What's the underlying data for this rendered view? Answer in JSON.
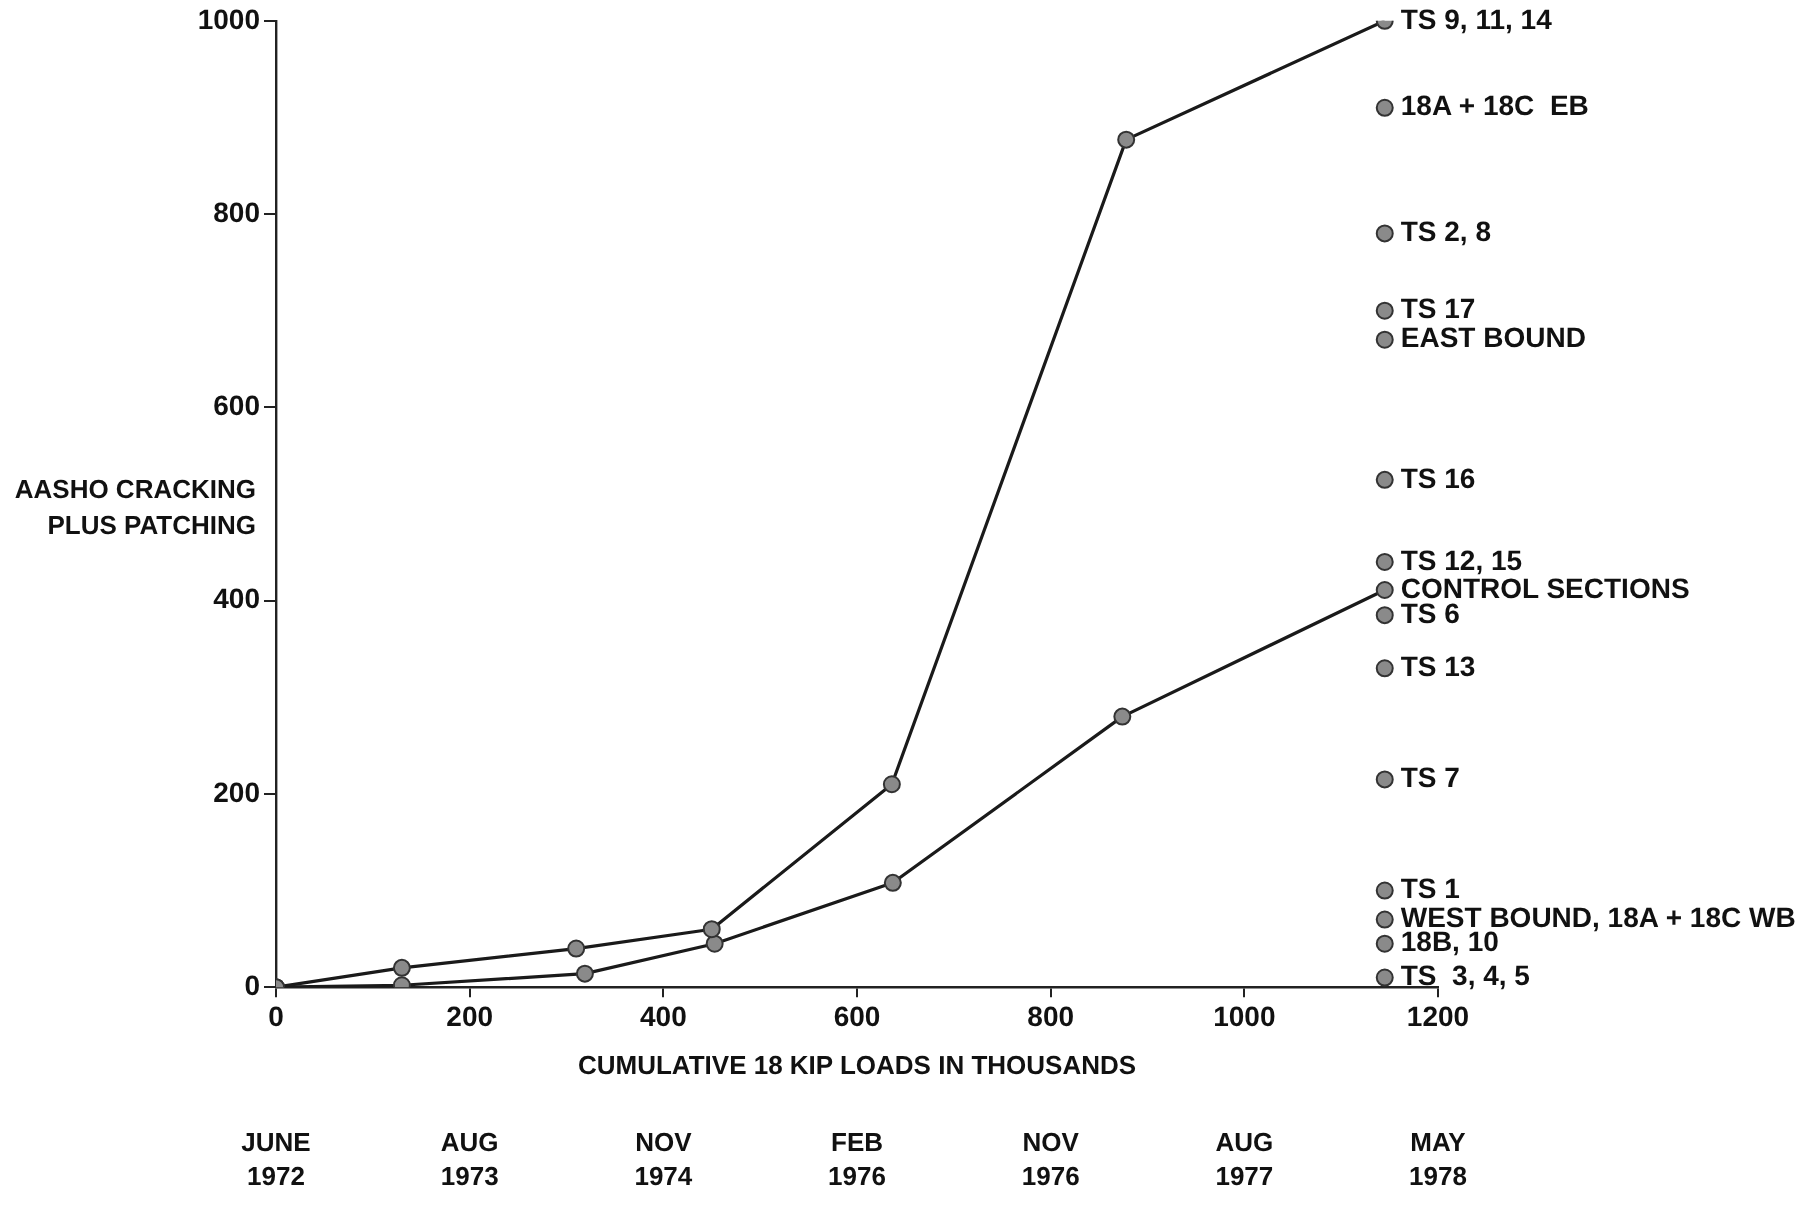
{
  "chart_data": {
    "type": "line",
    "xlabel": "CUMULATIVE 18 KIP LOADS IN THOUSANDS",
    "ylabel": "AASHO CRACKING PLUS PATCHING",
    "xlim": [
      0,
      1200
    ],
    "xticks": [
      0,
      200,
      400,
      600,
      800,
      1000,
      1200
    ],
    "ylim": [
      0,
      1000
    ],
    "yticks": [
      0,
      200,
      400,
      600,
      800,
      1000
    ],
    "grid": false,
    "legend": false,
    "marker": "circle",
    "line_style": "solid",
    "series": [
      {
        "name": "TS 9, 11, 14",
        "color": "#1a1a1a",
        "x": [
          0,
          130,
          310,
          450,
          636,
          878,
          1145
        ],
        "values": [
          0,
          20,
          40,
          60,
          210,
          877,
          1000
        ]
      },
      {
        "name": "CONTROL SECTIONS",
        "color": "#1a1a1a",
        "x": [
          0,
          130,
          319,
          453,
          637,
          874,
          1145
        ],
        "values": [
          0,
          2,
          14,
          45,
          108,
          280,
          411
        ]
      },
      {
        "type": "scatter",
        "name": "18A + 18C  EB",
        "color": "#8a8a8a",
        "x": [
          1145
        ],
        "values": [
          910
        ]
      },
      {
        "type": "scatter",
        "name": "TS 2, 8",
        "color": "#8a8a8a",
        "x": [
          1145
        ],
        "values": [
          780
        ]
      },
      {
        "type": "scatter",
        "name": "TS 17",
        "color": "#8a8a8a",
        "x": [
          1145
        ],
        "values": [
          700
        ]
      },
      {
        "type": "scatter",
        "name": "EAST BOUND",
        "color": "#8a8a8a",
        "x": [
          1145
        ],
        "values": [
          670
        ]
      },
      {
        "type": "scatter",
        "name": "TS 16",
        "color": "#8a8a8a",
        "x": [
          1145
        ],
        "values": [
          525
        ]
      },
      {
        "type": "scatter",
        "name": "TS 12, 15",
        "color": "#8a8a8a",
        "x": [
          1145
        ],
        "values": [
          440
        ]
      },
      {
        "type": "scatter",
        "name": "TS 6",
        "color": "#8a8a8a",
        "x": [
          1145
        ],
        "values": [
          385
        ]
      },
      {
        "type": "scatter",
        "name": "TS 13",
        "color": "#8a8a8a",
        "x": [
          1145
        ],
        "values": [
          330
        ]
      },
      {
        "type": "scatter",
        "name": "TS 7",
        "color": "#8a8a8a",
        "x": [
          1145
        ],
        "values": [
          215
        ]
      },
      {
        "type": "scatter",
        "name": "TS 1",
        "color": "#8a8a8a",
        "x": [
          1145
        ],
        "values": [
          100
        ]
      },
      {
        "type": "scatter",
        "name": "WEST BOUND, 18A + 18C WB",
        "color": "#8a8a8a",
        "x": [
          1145
        ],
        "values": [
          70
        ]
      },
      {
        "type": "scatter",
        "name": "18B, 10",
        "color": "#8a8a8a",
        "x": [
          1145
        ],
        "values": [
          45
        ]
      },
      {
        "type": "scatter",
        "name": "TS  3, 4, 5",
        "color": "#8a8a8a",
        "x": [
          1145
        ],
        "values": [
          10
        ]
      }
    ],
    "annotations": [
      "JUNE 1972",
      "AUG 1973",
      "NOV 1974",
      "FEB 1976",
      "NOV 1976",
      "AUG 1977",
      "MAY 1978"
    ]
  }
}
